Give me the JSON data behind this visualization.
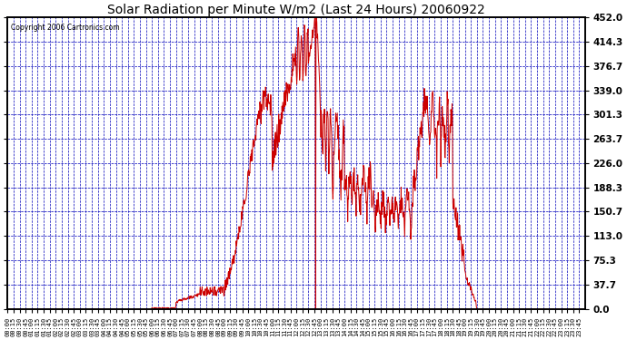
{
  "title": "Solar Radiation per Minute W/m2 (Last 24 Hours) 20060922",
  "copyright": "Copyright 2006 Cartronics.com",
  "background_color": "#ffffff",
  "plot_bg_color": "#ffffff",
  "line_color": "#cc0000",
  "grid_color": "#0000bb",
  "frame_color": "#000000",
  "tick_label_color": "#000000",
  "title_color": "#000000",
  "y_ticks": [
    0.0,
    37.7,
    75.3,
    113.0,
    150.7,
    188.3,
    226.0,
    263.7,
    301.3,
    339.0,
    376.7,
    414.3,
    452.0
  ],
  "y_max": 452.0,
  "y_min": 0.0,
  "total_minutes": 1440
}
